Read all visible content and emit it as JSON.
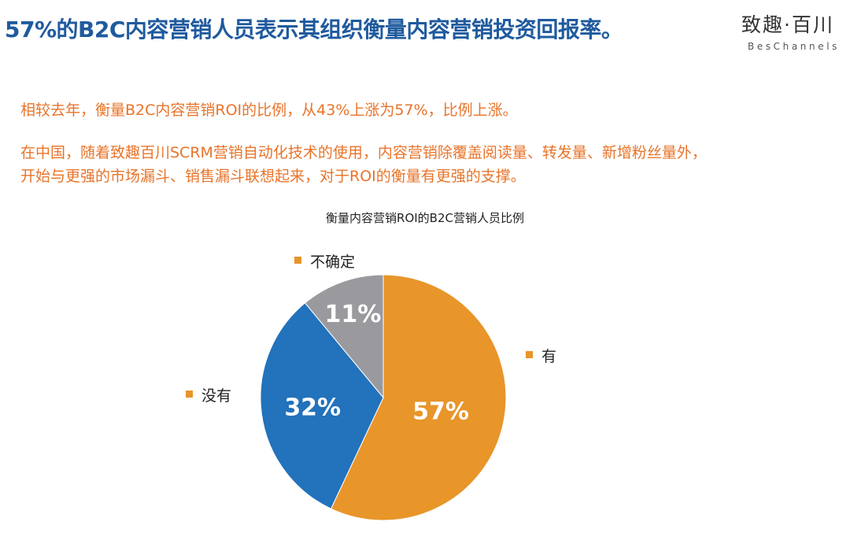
{
  "headline": "57%的B2C内容营销人员表示其组织衡量内容营销投资回报率。",
  "logo": {
    "cn": "致趣·百川",
    "en": "BesChannels"
  },
  "paragraphs": [
    "相较去年，衡量B2C内容营销ROI的比例，从43%上涨为57%，比例上涨。",
    "在中国，随着致趣百川SCRM营销自动化技术的使用，内容营销除覆盖阅读量、转发量、新增粉丝量外，",
    "开始与更强的市场漏斗、销售漏斗联想起来，对于ROI的衡量有更强的支撑。"
  ],
  "chart_data": {
    "type": "pie",
    "title": "衡量内容营销ROI的B2C营销人员比例",
    "slices": [
      {
        "name": "有",
        "value": 57,
        "label": "57%",
        "color": "#e8952a"
      },
      {
        "name": "没有",
        "value": 32,
        "label": "32%",
        "color": "#2272bc"
      },
      {
        "name": "不确定",
        "value": 11,
        "label": "11%",
        "color": "#9a9a9e"
      }
    ]
  }
}
